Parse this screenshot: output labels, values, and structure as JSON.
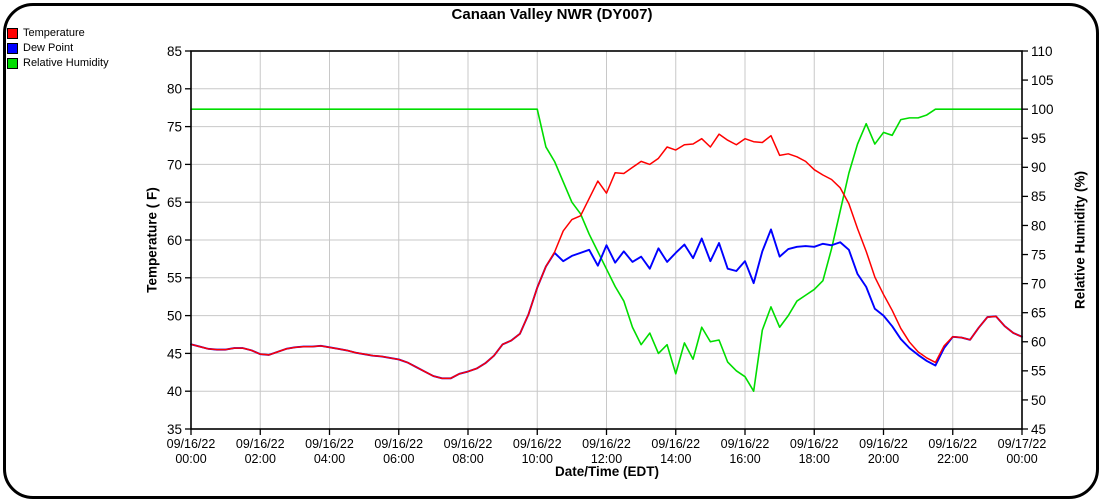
{
  "chart_data": {
    "type": "line",
    "title": "Canaan Valley NWR (DY007)",
    "x_axis": {
      "label": "Date/Time (EDT)",
      "range_hours": [
        0,
        24
      ],
      "ticks": [
        {
          "hour": 0,
          "date": "09/16/22",
          "time": "00:00"
        },
        {
          "hour": 2,
          "date": "09/16/22",
          "time": "02:00"
        },
        {
          "hour": 4,
          "date": "09/16/22",
          "time": "04:00"
        },
        {
          "hour": 6,
          "date": "09/16/22",
          "time": "06:00"
        },
        {
          "hour": 8,
          "date": "09/16/22",
          "time": "08:00"
        },
        {
          "hour": 10,
          "date": "09/16/22",
          "time": "10:00"
        },
        {
          "hour": 12,
          "date": "09/16/22",
          "time": "12:00"
        },
        {
          "hour": 14,
          "date": "09/16/22",
          "time": "14:00"
        },
        {
          "hour": 16,
          "date": "09/16/22",
          "time": "16:00"
        },
        {
          "hour": 18,
          "date": "09/16/22",
          "time": "18:00"
        },
        {
          "hour": 20,
          "date": "09/16/22",
          "time": "20:00"
        },
        {
          "hour": 22,
          "date": "09/16/22",
          "time": "22:00"
        },
        {
          "hour": 24,
          "date": "09/17/22",
          "time": "00:00"
        }
      ]
    },
    "y_left": {
      "label": "Temperature ( F)",
      "min": 35,
      "max": 85,
      "ticks": [
        35,
        40,
        45,
        50,
        55,
        60,
        65,
        70,
        75,
        80,
        85
      ]
    },
    "y_right": {
      "label": "Relative Humidity (%)",
      "min": 45,
      "max": 110,
      "ticks": [
        45,
        50,
        55,
        60,
        65,
        70,
        75,
        80,
        85,
        90,
        95,
        100,
        105,
        110
      ]
    },
    "grid": true,
    "grid_color": "#c8c8c8",
    "legend_position": "top-left",
    "legend": [
      {
        "label": "Temperature",
        "color": "#ff0000"
      },
      {
        "label": "Dew Point",
        "color": "#0000ff"
      },
      {
        "label": "Relative Humidity",
        "color": "#00dd00"
      }
    ],
    "sampling": {
      "start_hour": 0,
      "step_hours": 0.25,
      "points": 97
    },
    "series": [
      {
        "name": "Relative Humidity",
        "axis": "right",
        "color": "#00dd00",
        "width": 1.6,
        "values": [
          100,
          100,
          100,
          100,
          100,
          100,
          100,
          100,
          100,
          100,
          100,
          100,
          100,
          100,
          100,
          100,
          100,
          100,
          100,
          100,
          100,
          100,
          100,
          100,
          100,
          100,
          100,
          100,
          100,
          100,
          100,
          100,
          100,
          100,
          100,
          100,
          100,
          100,
          100,
          100,
          100,
          93.5,
          91.0,
          87.5,
          84.0,
          82.0,
          78.5,
          75.5,
          72.5,
          69.5,
          67.0,
          62.5,
          59.5,
          61.5,
          58.0,
          59.5,
          54.5,
          59.8,
          57.0,
          62.5,
          60.0,
          60.3,
          56.5,
          55.0,
          54.0,
          51.5,
          62.0,
          66.0,
          62.5,
          64.5,
          67.0,
          68.0,
          69.0,
          70.5,
          76.0,
          82.5,
          89.0,
          94.0,
          97.5,
          94.0,
          96.0,
          95.5,
          98.2,
          98.5,
          98.5,
          99.0,
          100,
          100,
          100,
          100,
          100,
          100,
          100,
          100,
          100,
          100,
          100
        ]
      },
      {
        "name": "Dew Point",
        "axis": "left",
        "color": "#0000ff",
        "width": 1.9,
        "values": [
          46.2,
          45.9,
          45.6,
          45.5,
          45.5,
          45.7,
          45.7,
          45.4,
          44.9,
          44.8,
          45.2,
          45.6,
          45.8,
          45.9,
          45.9,
          46.0,
          45.8,
          45.6,
          45.4,
          45.1,
          44.9,
          44.7,
          44.6,
          44.4,
          44.2,
          43.8,
          43.2,
          42.6,
          42.0,
          41.7,
          41.7,
          42.3,
          42.6,
          43.0,
          43.7,
          44.7,
          46.2,
          46.7,
          47.6,
          50.2,
          53.7,
          56.5,
          58.3,
          57.2,
          57.9,
          58.3,
          58.7,
          56.6,
          59.3,
          57.0,
          58.5,
          57.1,
          57.8,
          56.2,
          58.9,
          57.1,
          58.3,
          59.4,
          57.6,
          60.2,
          57.2,
          59.6,
          56.2,
          55.9,
          57.2,
          54.3,
          58.5,
          61.4,
          57.8,
          58.8,
          59.1,
          59.2,
          59.1,
          59.5,
          59.3,
          59.7,
          58.7,
          55.5,
          53.8,
          50.9,
          50.0,
          48.6,
          46.9,
          45.7,
          44.8,
          44.0,
          43.4,
          45.7,
          47.2,
          47.1,
          46.8,
          48.4,
          49.8,
          49.9,
          48.6,
          47.7,
          47.2
        ]
      },
      {
        "name": "Temperature",
        "axis": "left",
        "color": "#ff0000",
        "width": 1.5,
        "values": [
          46.2,
          45.9,
          45.6,
          45.5,
          45.5,
          45.7,
          45.7,
          45.4,
          44.9,
          44.8,
          45.2,
          45.6,
          45.8,
          45.9,
          45.9,
          46.0,
          45.8,
          45.6,
          45.4,
          45.1,
          44.9,
          44.7,
          44.6,
          44.4,
          44.2,
          43.8,
          43.2,
          42.6,
          42.0,
          41.7,
          41.7,
          42.3,
          42.6,
          43.0,
          43.7,
          44.7,
          46.2,
          46.7,
          47.6,
          50.2,
          53.7,
          56.5,
          58.4,
          61.2,
          62.7,
          63.2,
          65.5,
          67.8,
          66.2,
          68.9,
          68.8,
          69.6,
          70.4,
          70.0,
          70.8,
          72.3,
          71.9,
          72.6,
          72.7,
          73.4,
          72.3,
          74.0,
          73.2,
          72.6,
          73.4,
          73.0,
          72.9,
          73.8,
          71.2,
          71.4,
          71.0,
          70.4,
          69.3,
          68.6,
          68.0,
          66.9,
          64.8,
          61.5,
          58.5,
          55.1,
          52.8,
          50.7,
          48.3,
          46.5,
          45.2,
          44.4,
          43.8,
          46.0,
          47.2,
          47.1,
          46.8,
          48.4,
          49.8,
          49.9,
          48.6,
          47.7,
          47.2
        ]
      }
    ]
  }
}
